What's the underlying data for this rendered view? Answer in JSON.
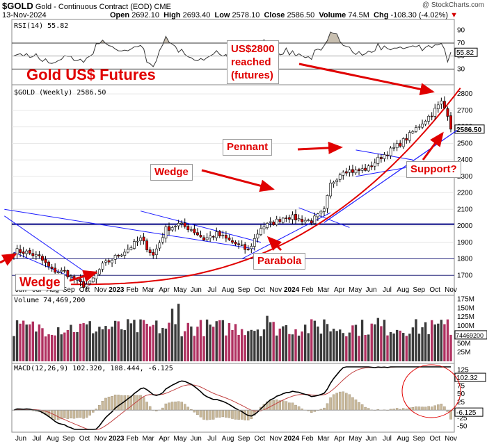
{
  "header": {
    "symbol": "$GOLD",
    "name": "Gold - Continuous Contract (EOD)",
    "exchange": "CME",
    "date": "13-Nov-2024",
    "watermark": "@ StockCharts.com",
    "ohlc": {
      "open_label": "Open",
      "open": "2692.10",
      "high_label": "High",
      "high": "2693.40",
      "low_label": "Low",
      "low": "2578.10",
      "close_label": "Close",
      "close": "2586.50",
      "volume_label": "Volume",
      "volume": "74.5M",
      "chg_label": "Chg",
      "chg": "-108.30 (-4.02%)"
    }
  },
  "annotations": {
    "big_title": "Gold US$ Futures",
    "us2800": [
      "US$2800",
      "reached",
      "(futures)"
    ],
    "pennant": "Pennant",
    "wedge_mid": "Wedge",
    "wedge_low": "Wedge",
    "parabola": "Parabola",
    "support": "Support?"
  },
  "colors": {
    "up": "#ffffff",
    "down": "#d40000",
    "annotation": "#e00000",
    "trendline": "#1a1aff",
    "support_line": "#000080",
    "rsi_fill": "#c8bfb0",
    "vol_up": "#3a3a3a",
    "vol_down": "#b03060",
    "macd_line": "#000000",
    "signal_line": "#c04040",
    "hist": "#c8b89a"
  },
  "chart_data": [
    {
      "type": "line",
      "panel": "RSI",
      "legend": "RSI(14) 55.82",
      "y_ticks": [
        30,
        50,
        70,
        90
      ],
      "last_value": "55.82",
      "ylim": [
        10,
        100
      ]
    },
    {
      "type": "candlestick",
      "panel": "price",
      "legend": "$GOLD (Weekly) 2586.50",
      "interval": "weekly",
      "y_ticks": [
        1700,
        1800,
        1900,
        2000,
        2100,
        2200,
        2300,
        2400,
        2500,
        2600,
        2700,
        2800
      ],
      "ylim": [
        1600,
        2830
      ],
      "last_value": "2586.50",
      "horizontal_levels": [
        1800,
        1700,
        2010
      ],
      "x_month_labels": [
        "Jun",
        "Jul",
        "Aug",
        "Sep",
        "Oct",
        "Nov",
        "2023",
        "Feb",
        "Mar",
        "Apr",
        "May",
        "Jun",
        "Jul",
        "Aug",
        "Sep",
        "Oct",
        "Nov",
        "2024",
        "Feb",
        "Mar",
        "Apr",
        "May",
        "Jun",
        "Jul",
        "Aug",
        "Sep",
        "Oct",
        "Nov"
      ],
      "close_anchors": [
        [
          0,
          1850
        ],
        [
          4,
          1840
        ],
        [
          8,
          1810
        ],
        [
          12,
          1730
        ],
        [
          16,
          1720
        ],
        [
          20,
          1660
        ],
        [
          22,
          1640
        ],
        [
          24,
          1650
        ],
        [
          28,
          1760
        ],
        [
          32,
          1810
        ],
        [
          36,
          1860
        ],
        [
          40,
          1920
        ],
        [
          44,
          1820
        ],
        [
          48,
          1980
        ],
        [
          52,
          2010
        ],
        [
          56,
          1980
        ],
        [
          60,
          1920
        ],
        [
          64,
          1950
        ],
        [
          68,
          1910
        ],
        [
          72,
          1870
        ],
        [
          74,
          1850
        ],
        [
          78,
          1990
        ],
        [
          82,
          2020
        ],
        [
          86,
          2060
        ],
        [
          90,
          2040
        ],
        [
          94,
          2030
        ],
        [
          98,
          2090
        ],
        [
          100,
          2250
        ],
        [
          104,
          2340
        ],
        [
          108,
          2330
        ],
        [
          112,
          2350
        ],
        [
          116,
          2420
        ],
        [
          120,
          2470
        ],
        [
          124,
          2530
        ],
        [
          128,
          2610
        ],
        [
          132,
          2680
        ],
        [
          135,
          2750
        ],
        [
          137,
          2680
        ],
        [
          138,
          2586
        ]
      ]
    },
    {
      "type": "bar",
      "panel": "volume",
      "legend": "Volume 74,469,200",
      "y_ticks": [
        "25M",
        "50M",
        "75M",
        "100M",
        "125M",
        "150M",
        "175M"
      ],
      "last_value": "74469200",
      "ylim": [
        0,
        180
      ]
    },
    {
      "type": "line",
      "panel": "MACD",
      "legend": "MACD(12,26,9) 102.320, 108.444, -6.125",
      "series": [
        {
          "name": "MACD",
          "last": 102.32
        },
        {
          "name": "Signal",
          "last": 108.444
        },
        {
          "name": "Histogram",
          "last": -6.125
        }
      ],
      "y_ticks": [
        -50,
        -25,
        0,
        25,
        50,
        75,
        100,
        125
      ],
      "ylim": [
        -60,
        135
      ]
    }
  ]
}
